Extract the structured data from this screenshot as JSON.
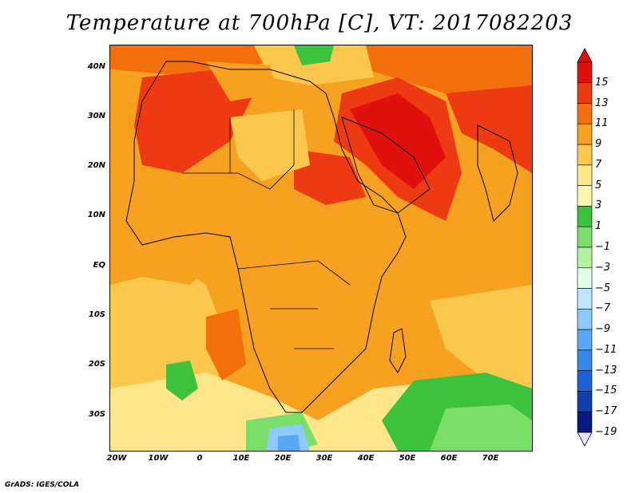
{
  "title": "Temperature at 700hPa [C], VT: 2017082203",
  "credit": "GrADS: IGES/COLA",
  "map": {
    "lat_ticks": [
      "40N",
      "30N",
      "20N",
      "10N",
      "EQ",
      "10S",
      "20S",
      "30S"
    ],
    "lon_ticks": [
      "20W",
      "10W",
      "0",
      "10E",
      "20E",
      "30E",
      "40E",
      "50E",
      "60E",
      "70E"
    ]
  },
  "colorbar": {
    "labels": [
      "15",
      "13",
      "11",
      "9",
      "7",
      "5",
      "3",
      "1",
      "−1",
      "−3",
      "−5",
      "−7",
      "−9",
      "−11",
      "−13",
      "−15",
      "−17",
      "−19"
    ],
    "colors": [
      "#e0100c",
      "#ee3a12",
      "#f26f0c",
      "#f7a120",
      "#fbc84d",
      "#fde78a",
      "#fff7b0",
      "#3cc23c",
      "#7bde6a",
      "#b4f0a0",
      "#e0ffe8",
      "#bfe6ff",
      "#8ccaff",
      "#5aa8f5",
      "#3388e8",
      "#1f62d6",
      "#1040b0",
      "#061a80"
    ]
  }
}
